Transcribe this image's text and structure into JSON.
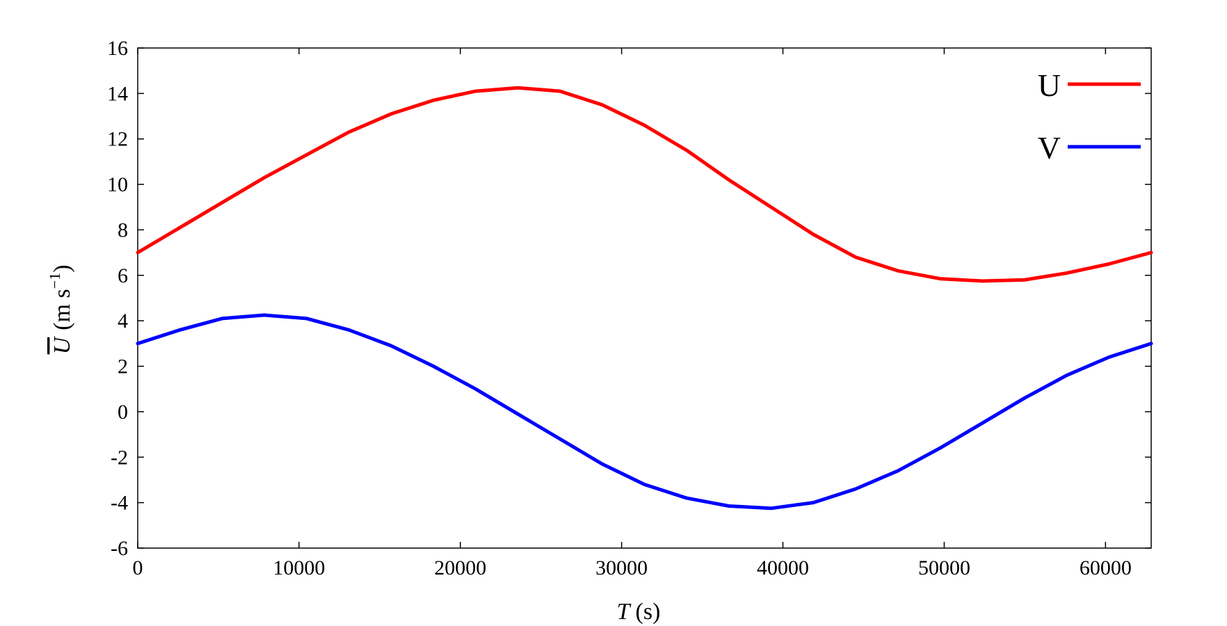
{
  "chart_data": {
    "type": "line",
    "title": "",
    "xlabel": {
      "symbol": "T",
      "unit": "(s)"
    },
    "ylabel": {
      "symbol": "U",
      "unit_open": "(m s",
      "unit_exp": "−1",
      "unit_close": ")"
    },
    "xlim": [
      0,
      62832
    ],
    "ylim": [
      -6,
      16
    ],
    "xticks": [
      0,
      10000,
      20000,
      30000,
      40000,
      50000,
      60000
    ],
    "yticks": [
      -6,
      -4,
      -2,
      0,
      2,
      4,
      6,
      8,
      10,
      12,
      14,
      16
    ],
    "grid": false,
    "legend_position": "top-right",
    "series": [
      {
        "name": "U",
        "color": "#ff0000",
        "x": [
          0,
          2618,
          5236,
          7854,
          10472,
          13090,
          15708,
          18326,
          20944,
          23562,
          26180,
          28798,
          31416,
          34034,
          36652,
          39270,
          41888,
          44506,
          47124,
          49742,
          52360,
          54978,
          57596,
          60214,
          62832
        ],
        "y": [
          7.0,
          8.1,
          9.2,
          10.3,
          11.3,
          12.3,
          13.1,
          13.7,
          14.1,
          14.25,
          14.1,
          13.5,
          12.6,
          11.5,
          10.2,
          9.0,
          7.8,
          6.8,
          6.2,
          5.85,
          5.75,
          5.8,
          6.1,
          6.5,
          7.0
        ]
      },
      {
        "name": "V",
        "color": "#0000ff",
        "x": [
          0,
          2618,
          5236,
          7854,
          10472,
          13090,
          15708,
          18326,
          20944,
          23562,
          26180,
          28798,
          31416,
          34034,
          36652,
          39270,
          41888,
          44506,
          47124,
          49742,
          52360,
          54978,
          57596,
          60214,
          62832
        ],
        "y": [
          3.0,
          3.6,
          4.1,
          4.25,
          4.1,
          3.6,
          2.9,
          2.0,
          1.0,
          -0.1,
          -1.2,
          -2.3,
          -3.2,
          -3.8,
          -4.15,
          -4.25,
          -4.0,
          -3.4,
          -2.6,
          -1.6,
          -0.5,
          0.6,
          1.6,
          2.4,
          3.0
        ]
      }
    ]
  }
}
